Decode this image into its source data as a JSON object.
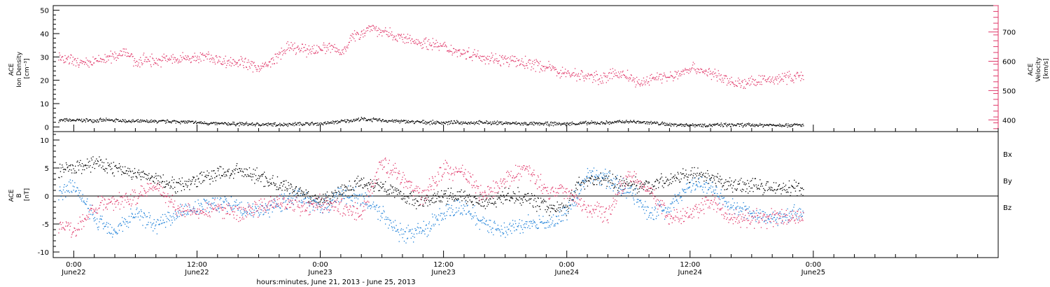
{
  "chart_data": [
    {
      "type": "scatter",
      "panel": "top",
      "ylabel_left_lines": [
        "ACE",
        "Ion Density",
        "[cm⁻³]"
      ],
      "ylabel_right_lines": [
        "ACE",
        "Velocity",
        "[km/s]"
      ],
      "ylim_left": [
        -2,
        52
      ],
      "yticks_left": [
        0,
        10,
        20,
        30,
        40,
        50
      ],
      "ylim_right": [
        360,
        790
      ],
      "yticks_right": [
        400,
        500,
        600,
        700
      ],
      "xlim_hours": [
        -2,
        90
      ],
      "series": [
        {
          "axis": "right",
          "color": "#e0386a",
          "points": [
            [
              -1.5,
              610
            ],
            [
              0,
              600
            ],
            [
              1,
              590
            ],
            [
              2,
              600
            ],
            [
              3,
              610
            ],
            [
              4,
              620
            ],
            [
              5,
              640
            ],
            [
              6,
              595
            ],
            [
              7,
              610
            ],
            [
              8,
              600
            ],
            [
              9,
              610
            ],
            [
              10,
              605
            ],
            [
              11,
              615
            ],
            [
              12,
              610
            ],
            [
              13,
              620
            ],
            [
              14,
              605
            ],
            [
              15,
              600
            ],
            [
              16,
              600
            ],
            [
              17,
              590
            ],
            [
              18,
              580
            ],
            [
              19,
              590
            ],
            [
              20,
              625
            ],
            [
              21,
              650
            ],
            [
              22,
              640
            ],
            [
              23,
              640
            ],
            [
              24,
              645
            ],
            [
              25,
              650
            ],
            [
              26,
              630
            ],
            [
              27,
              680
            ],
            [
              28,
              700
            ],
            [
              29,
              720
            ],
            [
              30,
              700
            ],
            [
              31,
              690
            ],
            [
              32,
              680
            ],
            [
              33,
              670
            ],
            [
              34,
              665
            ],
            [
              35,
              660
            ],
            [
              36,
              650
            ],
            [
              37,
              640
            ],
            [
              38,
              630
            ],
            [
              39,
              625
            ],
            [
              40,
              615
            ],
            [
              41,
              610
            ],
            [
              42,
              605
            ],
            [
              43,
              600
            ],
            [
              44,
              595
            ],
            [
              45,
              590
            ],
            [
              46,
              580
            ],
            [
              47,
              570
            ],
            [
              48,
              560
            ],
            [
              49,
              555
            ],
            [
              50,
              550
            ],
            [
              51,
              545
            ],
            [
              52,
              550
            ],
            [
              53,
              560
            ],
            [
              54,
              550
            ],
            [
              55,
              520
            ],
            [
              56,
              540
            ],
            [
              57,
              550
            ],
            [
              58,
              545
            ],
            [
              59,
              560
            ],
            [
              60,
              580
            ],
            [
              61,
              570
            ],
            [
              62,
              560
            ],
            [
              63,
              545
            ],
            [
              64,
              530
            ],
            [
              65,
              525
            ],
            [
              66,
              530
            ],
            [
              67,
              535
            ],
            [
              68,
              540
            ],
            [
              69,
              545
            ],
            [
              70,
              548
            ],
            [
              71,
              550
            ]
          ]
        },
        {
          "axis": "left",
          "color": "#000000",
          "points": [
            [
              -1.5,
              3
            ],
            [
              0,
              3
            ],
            [
              2,
              3
            ],
            [
              4,
              3
            ],
            [
              6,
              2.5
            ],
            [
              8,
              2.5
            ],
            [
              10,
              2.5
            ],
            [
              12,
              2
            ],
            [
              14,
              1.5
            ],
            [
              16,
              1.5
            ],
            [
              18,
              1.2
            ],
            [
              20,
              1.2
            ],
            [
              22,
              1.5
            ],
            [
              24,
              1.5
            ],
            [
              26,
              2.5
            ],
            [
              28,
              3.5
            ],
            [
              30,
              3
            ],
            [
              32,
              2.5
            ],
            [
              34,
              2.2
            ],
            [
              36,
              2
            ],
            [
              38,
              2
            ],
            [
              40,
              2
            ],
            [
              42,
              1.8
            ],
            [
              44,
              1.5
            ],
            [
              46,
              1.5
            ],
            [
              48,
              1.5
            ],
            [
              50,
              1.8
            ],
            [
              52,
              2
            ],
            [
              54,
              2.5
            ],
            [
              56,
              2
            ],
            [
              58,
              1.2
            ],
            [
              60,
              1
            ],
            [
              62,
              1
            ],
            [
              64,
              1
            ],
            [
              66,
              1
            ],
            [
              68,
              1
            ],
            [
              70,
              1
            ],
            [
              71,
              1
            ]
          ]
        }
      ]
    },
    {
      "type": "scatter",
      "panel": "bottom",
      "ylabel_left_lines": [
        "ACE",
        "B",
        "[nT]"
      ],
      "ylim": [
        -11,
        11.5
      ],
      "yticks": [
        -10,
        -5,
        0,
        5,
        10
      ],
      "xlim_hours": [
        -2,
        90
      ],
      "xticks": [
        {
          "hour": 0,
          "time": "0:00",
          "date": "June22"
        },
        {
          "hour": 12,
          "time": "12:00",
          "date": "June22"
        },
        {
          "hour": 24,
          "time": "0:00",
          "date": "June23"
        },
        {
          "hour": 36,
          "time": "12:00",
          "date": "June23"
        },
        {
          "hour": 48,
          "time": "0:00",
          "date": "June24"
        },
        {
          "hour": 60,
          "time": "12:00",
          "date": "June24"
        },
        {
          "hour": 72,
          "time": "0:00",
          "date": "June25"
        }
      ],
      "xlabel": "hours:minutes, June 21, 2013 - June 25, 2013",
      "legend": {
        "placement": "right",
        "entries": [
          "Bx",
          "By",
          "Bz"
        ]
      },
      "series": [
        {
          "name": "Bx",
          "color": "#000000",
          "points": [
            [
              -1.5,
              4.5
            ],
            [
              0,
              5
            ],
            [
              2,
              6
            ],
            [
              4,
              5
            ],
            [
              6,
              4
            ],
            [
              8,
              3
            ],
            [
              10,
              2
            ],
            [
              12,
              3
            ],
            [
              14,
              4
            ],
            [
              16,
              4.5
            ],
            [
              18,
              3.5
            ],
            [
              20,
              2
            ],
            [
              22,
              1
            ],
            [
              24,
              -1
            ],
            [
              26,
              1
            ],
            [
              28,
              2.5
            ],
            [
              30,
              2
            ],
            [
              32,
              0
            ],
            [
              34,
              -1
            ],
            [
              36,
              0
            ],
            [
              38,
              0
            ],
            [
              40,
              -1
            ],
            [
              42,
              0
            ],
            [
              44,
              0
            ],
            [
              46,
              -2
            ],
            [
              48,
              -2
            ],
            [
              49,
              2
            ],
            [
              50,
              3
            ],
            [
              52,
              3
            ],
            [
              54,
              2
            ],
            [
              56,
              2
            ],
            [
              58,
              3
            ],
            [
              60,
              4
            ],
            [
              62,
              3
            ],
            [
              64,
              2
            ],
            [
              66,
              2
            ],
            [
              68,
              1.5
            ],
            [
              70,
              1.5
            ],
            [
              71,
              1
            ]
          ]
        },
        {
          "name": "By",
          "color": "#1b7fd8",
          "points": [
            [
              -1.5,
              0
            ],
            [
              0,
              2
            ],
            [
              2,
              -4
            ],
            [
              4,
              -6
            ],
            [
              6,
              -3
            ],
            [
              8,
              -5
            ],
            [
              10,
              -3
            ],
            [
              12,
              -2
            ],
            [
              14,
              -1
            ],
            [
              16,
              -2
            ],
            [
              18,
              -3
            ],
            [
              20,
              -1
            ],
            [
              22,
              0
            ],
            [
              24,
              -2
            ],
            [
              26,
              0
            ],
            [
              28,
              0
            ],
            [
              30,
              -3
            ],
            [
              32,
              -7
            ],
            [
              34,
              -6
            ],
            [
              36,
              -3
            ],
            [
              38,
              -2
            ],
            [
              40,
              -5
            ],
            [
              42,
              -6
            ],
            [
              44,
              -5
            ],
            [
              46,
              -5
            ],
            [
              48,
              -3
            ],
            [
              50,
              4
            ],
            [
              52,
              3
            ],
            [
              54,
              1
            ],
            [
              56,
              -3
            ],
            [
              58,
              -2
            ],
            [
              60,
              2
            ],
            [
              62,
              2
            ],
            [
              64,
              -2
            ],
            [
              66,
              -3
            ],
            [
              68,
              -4
            ],
            [
              70,
              -3
            ],
            [
              71,
              -3
            ]
          ]
        },
        {
          "name": "Bz",
          "color": "#e0386a",
          "points": [
            [
              -1.5,
              -5
            ],
            [
              0,
              -6
            ],
            [
              2,
              -2
            ],
            [
              4,
              -1
            ],
            [
              6,
              0
            ],
            [
              8,
              2
            ],
            [
              10,
              -2
            ],
            [
              12,
              -3
            ],
            [
              14,
              -2
            ],
            [
              16,
              -3
            ],
            [
              18,
              -2
            ],
            [
              20,
              -1
            ],
            [
              22,
              -2
            ],
            [
              24,
              -1
            ],
            [
              26,
              -2
            ],
            [
              28,
              -3
            ],
            [
              30,
              6
            ],
            [
              32,
              3
            ],
            [
              34,
              0
            ],
            [
              36,
              5
            ],
            [
              38,
              4
            ],
            [
              40,
              0
            ],
            [
              42,
              3
            ],
            [
              44,
              5
            ],
            [
              46,
              1
            ],
            [
              48,
              1
            ],
            [
              50,
              -2
            ],
            [
              52,
              -3
            ],
            [
              54,
              4
            ],
            [
              56,
              1
            ],
            [
              58,
              -4
            ],
            [
              60,
              -3
            ],
            [
              62,
              -1
            ],
            [
              64,
              -4
            ],
            [
              66,
              -4
            ],
            [
              68,
              -4
            ],
            [
              70,
              -4
            ],
            [
              71,
              -3.5
            ]
          ]
        }
      ]
    }
  ]
}
